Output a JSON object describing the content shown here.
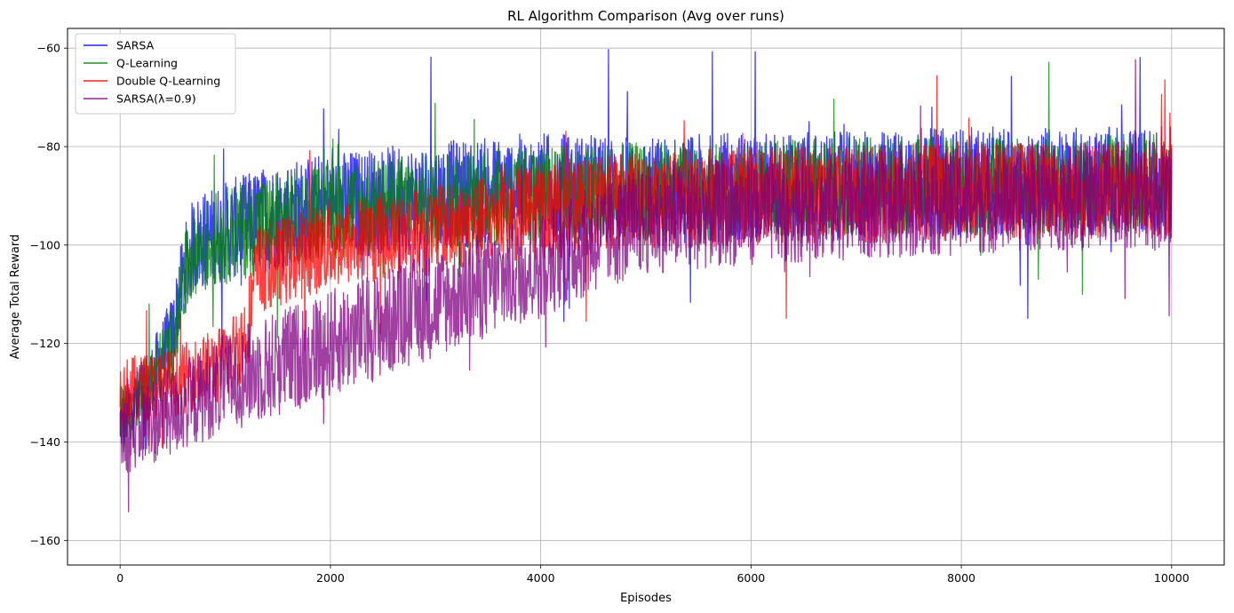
{
  "chart_data": {
    "type": "line",
    "title": "RL Algorithm Comparison (Avg over runs)",
    "xlabel": "Episodes",
    "ylabel": "Average Total Reward",
    "xlim": [
      -500,
      10500
    ],
    "ylim": [
      -165,
      -56
    ],
    "xticks": [
      0,
      2000,
      4000,
      6000,
      8000,
      10000
    ],
    "yticks": [
      -160,
      -140,
      -120,
      -100,
      -80,
      -60
    ],
    "grid": true,
    "legend_position": "top-left",
    "series": [
      {
        "name": "SARSA",
        "color": "#0000ff",
        "envelope_x": [
          0,
          300,
          500,
          600,
          700,
          1000,
          1500,
          2000,
          3000,
          4000,
          5000,
          6000,
          7000,
          8000,
          9000,
          10000
        ],
        "mean": [
          -136,
          -127,
          -118,
          -106,
          -100,
          -97,
          -94,
          -92,
          -90,
          -88,
          -89,
          -88,
          -88,
          -87,
          -87,
          -87
        ],
        "spread": [
          7,
          7,
          8,
          9,
          10,
          10,
          11,
          11,
          11,
          11,
          11,
          11,
          11,
          11,
          11,
          11
        ]
      },
      {
        "name": "Q-Learning",
        "color": "#008000",
        "envelope_x": [
          0,
          300,
          500,
          600,
          700,
          1000,
          1500,
          2000,
          3000,
          4000,
          5000,
          6000,
          7000,
          8000,
          9000,
          10000
        ],
        "mean": [
          -136,
          -128,
          -120,
          -108,
          -101,
          -98,
          -95,
          -93,
          -91,
          -90,
          -89,
          -89,
          -88,
          -88,
          -88,
          -87
        ],
        "spread": [
          7,
          7,
          8,
          9,
          9,
          10,
          10,
          10,
          10,
          10,
          10,
          10,
          10,
          10,
          10,
          10
        ]
      },
      {
        "name": "Double Q-Learning",
        "color": "#ff0000",
        "envelope_x": [
          0,
          500,
          1000,
          1200,
          1300,
          2000,
          3000,
          3500,
          4000,
          5000,
          6000,
          7000,
          8000,
          9000,
          10000
        ],
        "mean": [
          -130,
          -128,
          -124,
          -118,
          -105,
          -100,
          -97,
          -95,
          -93,
          -91,
          -90,
          -90,
          -89,
          -89,
          -89
        ],
        "spread": [
          7,
          7,
          8,
          9,
          9,
          9,
          9,
          9,
          10,
          10,
          10,
          10,
          10,
          10,
          10
        ]
      },
      {
        "name": "SARSA(λ=0.9)",
        "color": "#800080",
        "envelope_x": [
          0,
          500,
          1000,
          1500,
          2000,
          2500,
          3000,
          3500,
          4000,
          4500,
          5000,
          6000,
          7000,
          8000,
          9000,
          10000
        ],
        "mean": [
          -138,
          -134,
          -128,
          -124,
          -120,
          -116,
          -112,
          -108,
          -104,
          -99,
          -95,
          -93,
          -92,
          -91,
          -90,
          -90
        ],
        "spread": [
          9,
          9,
          10,
          11,
          11,
          11,
          11,
          11,
          11,
          11,
          11,
          11,
          11,
          11,
          11,
          11
        ]
      }
    ]
  }
}
